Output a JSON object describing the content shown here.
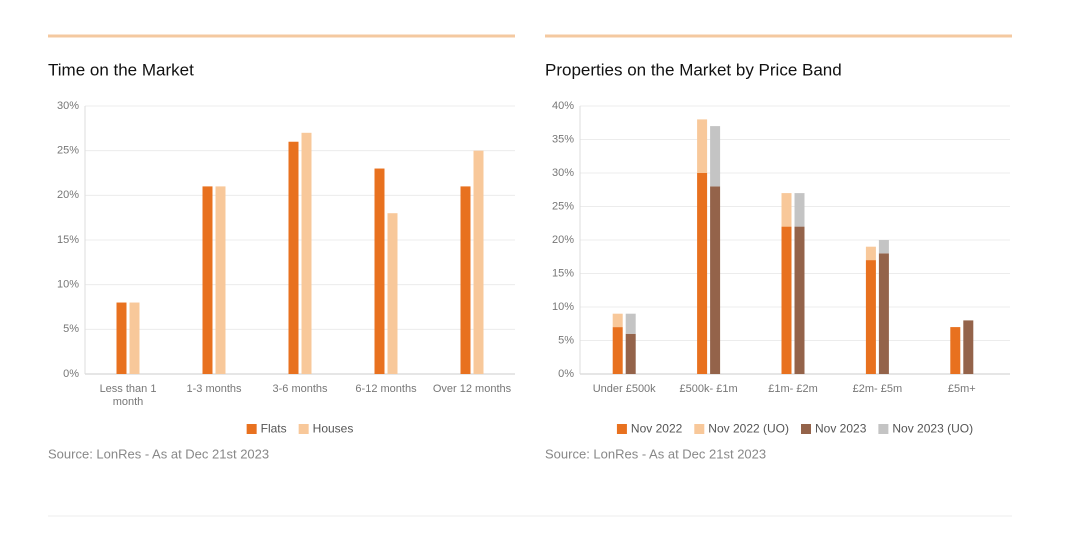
{
  "chart_data": [
    {
      "type": "bar",
      "title": "Time on the Market",
      "categories": [
        "Less than 1 month",
        "1-3 months",
        "3-6 months",
        "6-12 months",
        "Over 12 months"
      ],
      "series": [
        {
          "name": "Flats",
          "color": "#e8711f",
          "values": [
            8,
            21,
            26,
            23,
            21
          ]
        },
        {
          "name": "Houses",
          "color": "#f8c89a",
          "values": [
            8,
            21,
            27,
            18,
            25
          ]
        }
      ],
      "ylim": [
        0,
        30
      ],
      "yticks": [
        {
          "value": 0,
          "label": "0%"
        },
        {
          "value": 5,
          "label": "5%"
        },
        {
          "value": 10,
          "label": "10%"
        },
        {
          "value": 15,
          "label": "15%"
        },
        {
          "value": 20,
          "label": "20%"
        },
        {
          "value": 25,
          "label": "25%"
        },
        {
          "value": 30,
          "label": "30%"
        }
      ],
      "grid": true,
      "legend": "bottom",
      "source": "Source: LonRes - As at Dec 21st 2023"
    },
    {
      "type": "stacked_bar",
      "title": "Properties on the Market by Price Band",
      "categories": [
        "Under £500k",
        "£500k- £1m",
        "£1m- £2m",
        "£2m- £5m",
        "£5m+"
      ],
      "series": [
        {
          "name": "Nov 2022",
          "color": "#e8711f",
          "stack": 0,
          "values": [
            7,
            30,
            22,
            17,
            7
          ]
        },
        {
          "name": "Nov 2022 (UO)",
          "color": "#f8c89a",
          "stack": 0,
          "values": [
            2,
            8,
            5,
            2,
            null
          ]
        },
        {
          "name": "Nov 2023",
          "color": "#94634a",
          "stack": 1,
          "values": [
            6,
            28,
            22,
            18,
            8
          ]
        },
        {
          "name": "Nov 2023 (UO)",
          "color": "#c4c4c4",
          "stack": 1,
          "values": [
            3,
            9,
            5,
            2,
            null
          ]
        }
      ],
      "ylim": [
        0,
        40
      ],
      "yticks": [
        {
          "value": 0,
          "label": "0%"
        },
        {
          "value": 5,
          "label": "5%"
        },
        {
          "value": 10,
          "label": "10%"
        },
        {
          "value": 15,
          "label": "15%"
        },
        {
          "value": 20,
          "label": "20%"
        },
        {
          "value": 25,
          "label": "25%"
        },
        {
          "value": 30,
          "label": "30%"
        },
        {
          "value": 35,
          "label": "35%"
        },
        {
          "value": 40,
          "label": "40%"
        }
      ],
      "grid": true,
      "legend": "bottom",
      "source": "Source: LonRes - As at Dec 21st 2023"
    }
  ]
}
